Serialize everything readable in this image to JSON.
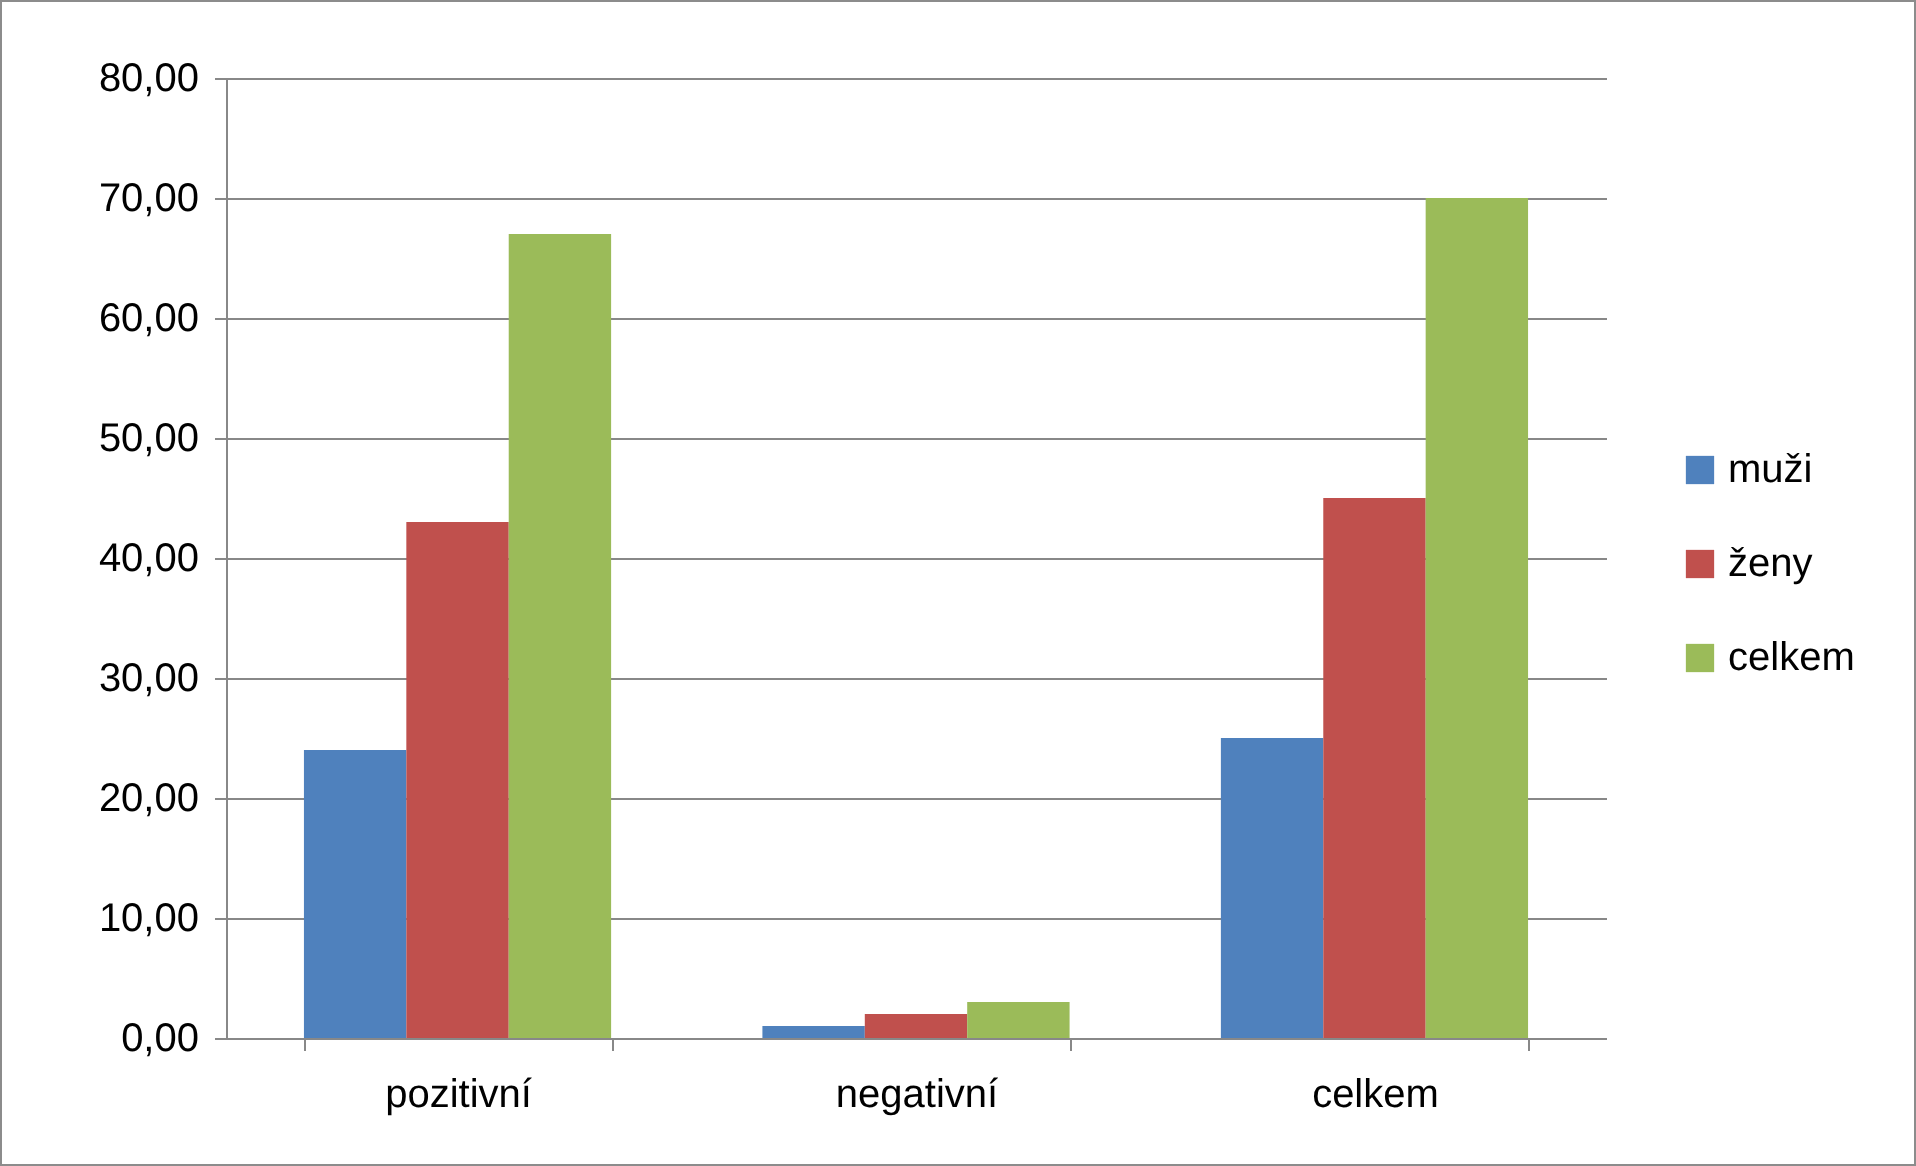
{
  "chart_data": {
    "type": "bar",
    "categories": [
      "pozitivní",
      "negativní",
      "celkem"
    ],
    "series": [
      {
        "name": "muži",
        "color": "#4f81bd",
        "values": [
          24,
          1,
          25
        ]
      },
      {
        "name": "ženy",
        "color": "#c0504d",
        "values": [
          43,
          2,
          45
        ]
      },
      {
        "name": "celkem",
        "color": "#9bbb59",
        "values": [
          67,
          3,
          70
        ]
      }
    ],
    "ylim": [
      0,
      80
    ],
    "yticks": [
      {
        "value": 0,
        "label": "0,00"
      },
      {
        "value": 10,
        "label": "10,00"
      },
      {
        "value": 20,
        "label": "20,00"
      },
      {
        "value": 30,
        "label": "30,00"
      },
      {
        "value": 40,
        "label": "40,00"
      },
      {
        "value": 50,
        "label": "50,00"
      },
      {
        "value": 60,
        "label": "60,00"
      },
      {
        "value": 70,
        "label": "70,00"
      },
      {
        "value": 80,
        "label": "80,00"
      }
    ],
    "grid": "y",
    "legend": "right"
  }
}
